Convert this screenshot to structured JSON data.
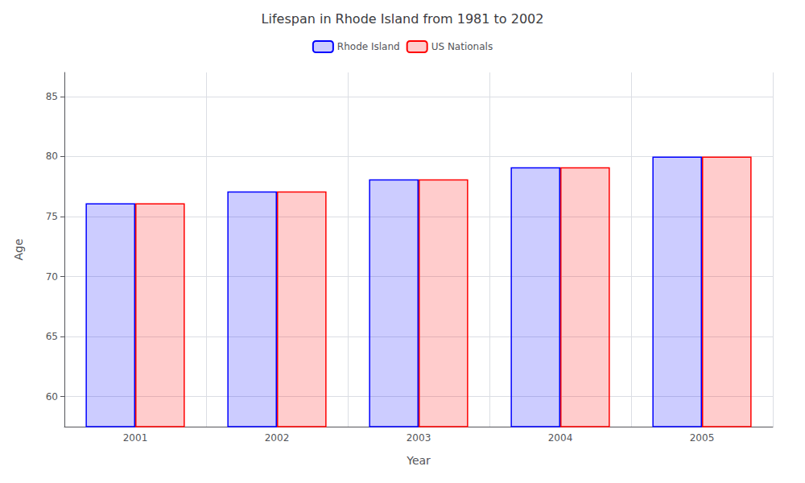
{
  "chart_data": {
    "type": "bar",
    "title": "Lifespan in Rhode Island from 1981 to 2002",
    "xlabel": "Year",
    "ylabel": "Age",
    "categories": [
      "2001",
      "2002",
      "2003",
      "2004",
      "2005"
    ],
    "series": [
      {
        "name": "Rhode Island",
        "color": "#0000ff",
        "values": [
          76.1,
          77.1,
          78.1,
          79.1,
          80.0
        ]
      },
      {
        "name": "US Nationals",
        "color": "#ff0000",
        "values": [
          76.1,
          77.1,
          78.1,
          79.1,
          80.0
        ]
      }
    ],
    "ylim": [
      57.5,
      87
    ],
    "yticks": [
      60,
      65,
      70,
      75,
      80,
      85
    ],
    "grid": true,
    "legend": "top"
  }
}
